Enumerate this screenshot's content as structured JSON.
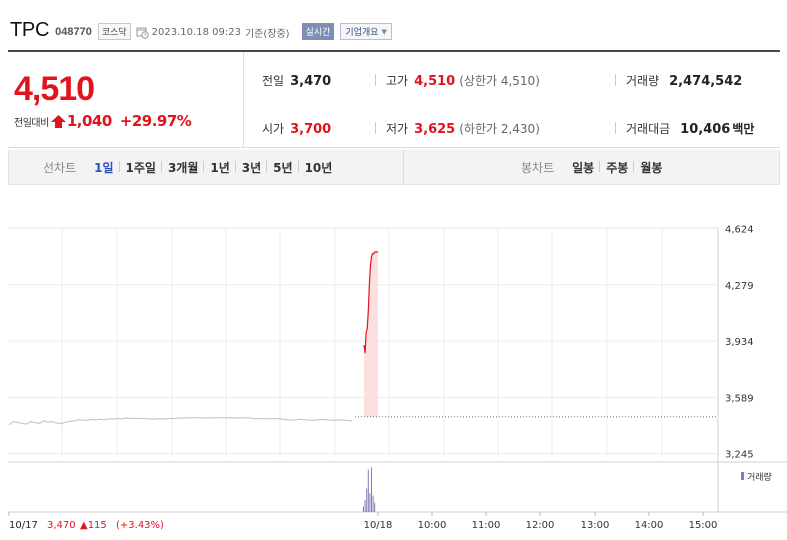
{
  "header": {
    "stock_name": "TPC",
    "stock_code": "048770",
    "market_badge": "코스닥",
    "datetime": "2023.10.18 09:23",
    "basis": "기준(장중)",
    "realtime_badge": "실시간",
    "company_button": "기업개요"
  },
  "summary": {
    "price": "4,510",
    "diff_label": "전일대비",
    "diff_value": "1,040",
    "diff_percent": "+29.97%",
    "prev_close_label": "전일",
    "prev_close": "3,470",
    "high_label": "고가",
    "high": "4,510",
    "upper_limit": "(상한가 4,510)",
    "volume_label": "거래량",
    "volume": "2,474,542",
    "open_label": "시가",
    "open": "3,700",
    "low_label": "저가",
    "low": "3,625",
    "lower_limit": "(하한가 2,430)",
    "amount_label": "거래대금",
    "amount": "10,406",
    "amount_unit": "백만"
  },
  "tabs": {
    "line_title": "선차트",
    "line_tabs": [
      "1일",
      "1주일",
      "3개월",
      "1년",
      "3년",
      "5년",
      "10년"
    ],
    "active": "1일",
    "candle_title": "봉차트",
    "candle_tabs": [
      "일봉",
      "주봉",
      "월봉"
    ]
  },
  "chart_data": {
    "type": "line",
    "y_ticks": [
      "4,624",
      "4,279",
      "3,934",
      "3,589",
      "3,245"
    ],
    "ylim": [
      3245,
      4624
    ],
    "prev_close": 3470,
    "x_tick_labels": [
      "10/18",
      "10:00",
      "11:00",
      "12:00",
      "13:00",
      "14:00",
      "15:00"
    ],
    "prev_day_label": "10/17",
    "prev_day_close": "3,470",
    "prev_day_change": "▲115",
    "prev_day_change_pct": "(+3.43%)",
    "volume_legend": "거래량",
    "prev_day_series": {
      "name": "10/17",
      "values": [
        3420,
        3440,
        3435,
        3430,
        3425,
        3440,
        3435,
        3430,
        3445,
        3438,
        3440,
        3432,
        3428,
        3436,
        3442,
        3445,
        3452,
        3450,
        3448,
        3454,
        3452,
        3455,
        3452,
        3458,
        3456,
        3460,
        3458,
        3462,
        3460,
        3461,
        3459,
        3460,
        3458,
        3455,
        3457,
        3458,
        3457,
        3460,
        3459,
        3463,
        3462,
        3465,
        3463,
        3466,
        3464,
        3462,
        3465,
        3463,
        3464,
        3466,
        3463,
        3465,
        3462,
        3464,
        3463,
        3465,
        3460,
        3458,
        3460,
        3458,
        3459,
        3458,
        3460,
        3455,
        3452,
        3450,
        3452,
        3455,
        3452,
        3450,
        3448,
        3451,
        3454,
        3452,
        3450,
        3448,
        3452,
        3450,
        3448,
        3445
      ]
    },
    "today_series": {
      "name": "10/18",
      "values": [
        3910,
        3860,
        3985,
        4010,
        4120,
        4280,
        4400,
        4450,
        4470,
        4470,
        4480,
        4480,
        4480,
        4480
      ]
    },
    "volume_bars": [
      0.12,
      0.25,
      0.5,
      0.9,
      0.4,
      0.95,
      0.35,
      0.2
    ]
  }
}
